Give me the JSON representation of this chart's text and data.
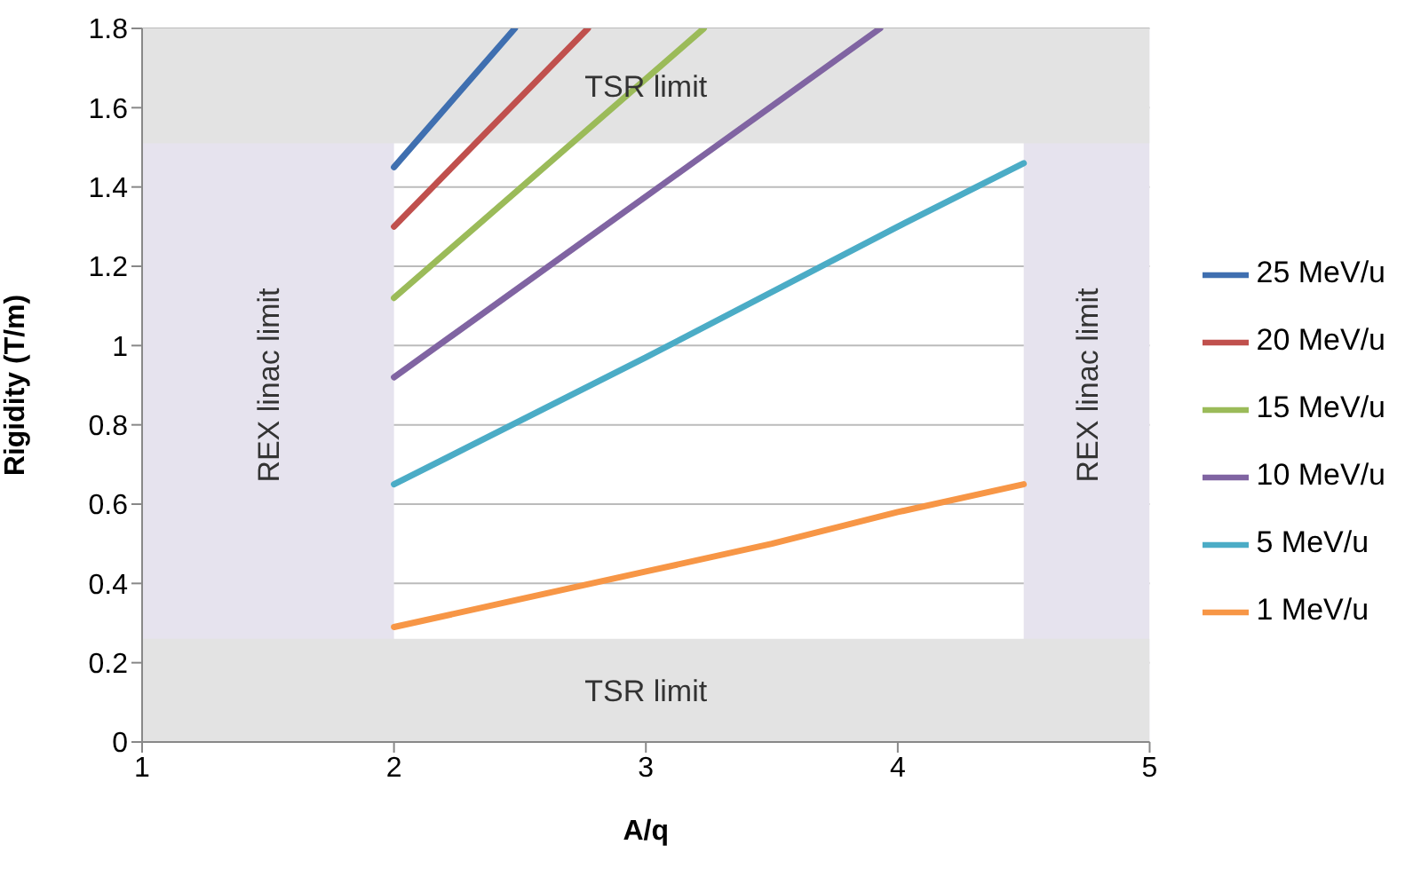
{
  "chart_data": {
    "type": "line",
    "xlabel": "A/q",
    "ylabel": "Rigidity (T/m)",
    "xlim": [
      1,
      5
    ],
    "xticks": [
      1,
      2,
      3,
      4,
      5
    ],
    "ylim": [
      0,
      1.8
    ],
    "yticks": [
      0,
      0.2,
      0.4,
      0.6,
      0.8,
      1,
      1.2,
      1.4,
      1.6,
      1.8
    ],
    "grid": "y",
    "legend": "right",
    "marker": "none",
    "line_style": "solid",
    "bands": [
      {
        "axis": "x",
        "from": 1,
        "to": 2,
        "label": "REX linac limit",
        "color": "#e6e3ee"
      },
      {
        "axis": "x",
        "from": 4.5,
        "to": 5,
        "label": "REX linac limit",
        "color": "#e6e3ee"
      },
      {
        "axis": "y",
        "from": 1.51,
        "to": 1.8,
        "label": "TSR limit",
        "color": "#e3e3e3"
      },
      {
        "axis": "y",
        "from": 0,
        "to": 0.26,
        "label": "TSR limit",
        "color": "#e3e3e3"
      }
    ],
    "series": [
      {
        "name": "25 MeV/u",
        "color": "#3f6fb0",
        "x": [
          2,
          2.48
        ],
        "values": [
          1.45,
          1.8
        ]
      },
      {
        "name": "20 MeV/u",
        "color": "#c0504d",
        "x": [
          2,
          2.77
        ],
        "values": [
          1.3,
          1.8
        ]
      },
      {
        "name": "15 MeV/u",
        "color": "#9bbb59",
        "x": [
          2,
          3.23
        ],
        "values": [
          1.12,
          1.8
        ]
      },
      {
        "name": "10 MeV/u",
        "color": "#8064a2",
        "x": [
          2,
          3.93
        ],
        "values": [
          0.92,
          1.8
        ]
      },
      {
        "name": "5 MeV/u",
        "color": "#4bacc6",
        "x": [
          2,
          3,
          4,
          4.5
        ],
        "values": [
          0.65,
          0.97,
          1.3,
          1.46
        ]
      },
      {
        "name": "1 MeV/u",
        "color": "#f79646",
        "x": [
          2,
          2.5,
          3,
          3.5,
          4,
          4.5
        ],
        "values": [
          0.29,
          0.36,
          0.43,
          0.5,
          0.58,
          0.65
        ]
      }
    ]
  }
}
